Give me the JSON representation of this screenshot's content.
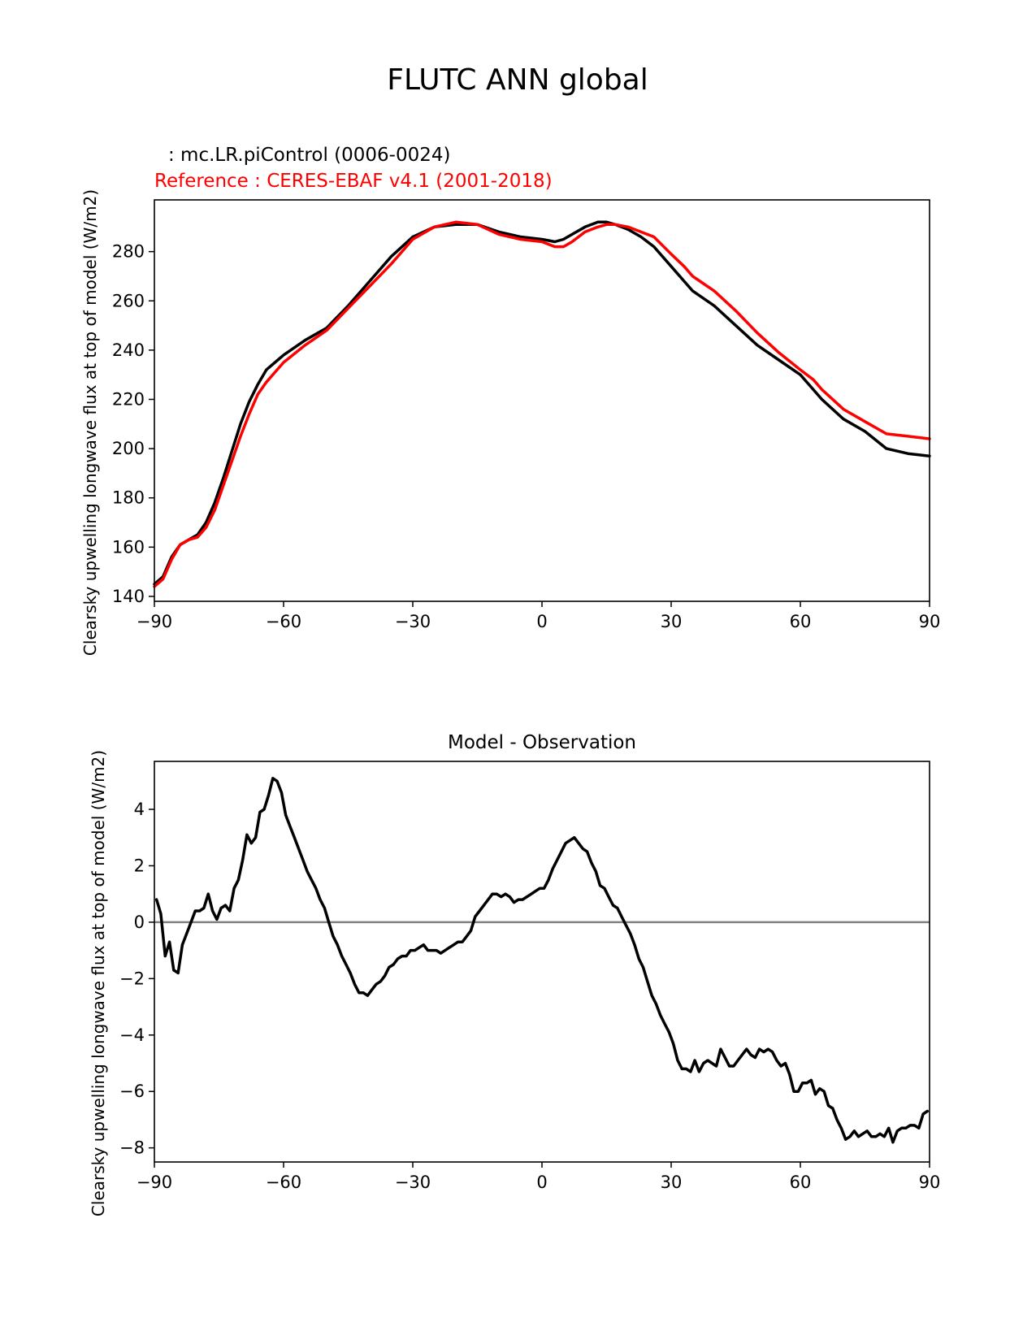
{
  "figure_title": "FLUTC ANN global",
  "colors": {
    "model": "#000000",
    "reference": "#ff0000",
    "zero_line": "#808080"
  },
  "chart_data": [
    {
      "type": "line",
      "title_lines": [
        ": mc.LR.piControl (0006-0024)",
        "Reference : CERES-EBAF v4.1 (2001-2018)"
      ],
      "xlabel": "",
      "ylabel": "Clearsky upwelling longwave flux at top of model (W/m2)",
      "xlim": [
        -90,
        90
      ],
      "ylim": [
        138,
        301
      ],
      "xticks": [
        -90,
        -60,
        -30,
        0,
        30,
        60,
        90
      ],
      "xtick_labels": [
        "−90",
        "−60",
        "−30",
        "0",
        "30",
        "60",
        "90"
      ],
      "yticks": [
        140,
        160,
        180,
        200,
        220,
        240,
        260,
        280
      ],
      "ytick_labels": [
        "140",
        "160",
        "180",
        "200",
        "220",
        "240",
        "260",
        "280"
      ],
      "grid": false,
      "series": [
        {
          "name": "mc.LR.piControl (0006-0024)",
          "color": "#000000",
          "x": [
            -90,
            -88,
            -86,
            -84,
            -82,
            -80,
            -78,
            -76,
            -74,
            -72,
            -70,
            -68,
            -66,
            -64,
            -62,
            -60,
            -55,
            -50,
            -45,
            -40,
            -35,
            -30,
            -25,
            -20,
            -15,
            -10,
            -5,
            0,
            3,
            5,
            7,
            10,
            13,
            15,
            17,
            20,
            23,
            26,
            30,
            33,
            35,
            40,
            45,
            50,
            55,
            60,
            63,
            65,
            70,
            75,
            80,
            85,
            90
          ],
          "values": [
            145,
            148,
            156,
            161,
            163,
            165,
            170,
            178,
            188,
            199,
            210,
            219,
            226,
            232,
            235,
            238,
            244,
            249,
            258,
            268,
            278,
            286,
            290,
            291,
            291,
            288,
            286,
            285,
            284,
            285,
            287,
            290,
            292,
            292,
            291,
            289,
            286,
            282,
            274,
            268,
            264,
            258,
            250,
            242,
            236,
            230,
            224,
            220,
            212,
            207,
            200,
            198,
            197
          ]
        },
        {
          "name": "CERES-EBAF v4.1 (2001-2018)",
          "color": "#ff0000",
          "x": [
            -90,
            -88,
            -86,
            -84,
            -82,
            -80,
            -78,
            -76,
            -74,
            -72,
            -70,
            -68,
            -66,
            -64,
            -62,
            -60,
            -55,
            -50,
            -45,
            -40,
            -35,
            -30,
            -25,
            -20,
            -15,
            -10,
            -5,
            0,
            3,
            5,
            7,
            10,
            13,
            15,
            17,
            20,
            23,
            26,
            30,
            33,
            35,
            40,
            45,
            50,
            55,
            60,
            63,
            65,
            70,
            75,
            80,
            85,
            90
          ],
          "values": [
            144,
            147,
            155,
            161,
            163,
            164,
            168,
            175,
            185,
            195,
            205,
            214,
            222,
            227,
            231,
            235,
            242,
            248,
            257,
            266,
            275,
            285,
            290,
            292,
            291,
            287,
            285,
            284,
            282,
            282,
            284,
            288,
            290,
            291,
            291,
            290,
            288,
            286,
            279,
            274,
            270,
            264,
            256,
            247,
            239,
            232,
            228,
            224,
            216,
            211,
            206,
            205,
            204
          ]
        }
      ]
    },
    {
      "type": "line",
      "title": "Model - Observation",
      "xlabel": "",
      "ylabel": "Clearsky upwelling longwave flux at top of model (W/m2)",
      "xlim": [
        -90,
        90
      ],
      "ylim": [
        -8.5,
        5.7
      ],
      "xticks": [
        -90,
        -60,
        -30,
        0,
        30,
        60,
        90
      ],
      "xtick_labels": [
        "−90",
        "−60",
        "−30",
        "0",
        "30",
        "60",
        "90"
      ],
      "yticks": [
        -8,
        -6,
        -4,
        -2,
        0,
        2,
        4
      ],
      "ytick_labels": [
        "−8",
        "−6",
        "−4",
        "−2",
        "0",
        "2",
        "4"
      ],
      "reference_line": {
        "y": 0,
        "color": "#808080"
      },
      "grid": false,
      "series": [
        {
          "name": "Model - Observation",
          "color": "#000000",
          "x": [
            -89.5,
            -88.5,
            -87.5,
            -86.5,
            -85.5,
            -84.5,
            -83.5,
            -82.5,
            -81.5,
            -80.5,
            -79.5,
            -78.5,
            -77.5,
            -76.5,
            -75.5,
            -74.5,
            -73.5,
            -72.5,
            -71.5,
            -70.5,
            -69.5,
            -68.5,
            -67.5,
            -66.5,
            -65.5,
            -64.5,
            -63.5,
            -62.5,
            -61.5,
            -60.5,
            -59.5,
            -58.5,
            -57.5,
            -56.5,
            -55.5,
            -54.5,
            -53.5,
            -52.5,
            -51.5,
            -50.5,
            -49.5,
            -48.5,
            -47.5,
            -46.5,
            -45.5,
            -44.5,
            -43.5,
            -42.5,
            -41.5,
            -40.5,
            -39.5,
            -38.5,
            -37.5,
            -36.5,
            -35.5,
            -34.5,
            -33.5,
            -32.5,
            -31.5,
            -30.5,
            -29.5,
            -28.5,
            -27.5,
            -26.5,
            -25.5,
            -24.5,
            -23.5,
            -22.5,
            -21.5,
            -20.5,
            -19.5,
            -18.5,
            -17.5,
            -16.5,
            -15.5,
            -14.5,
            -13.5,
            -12.5,
            -11.5,
            -10.5,
            -9.5,
            -8.5,
            -7.5,
            -6.5,
            -5.5,
            -4.5,
            -3.5,
            -2.5,
            -1.5,
            -0.5,
            0.5,
            1.5,
            2.5,
            3.5,
            4.5,
            5.5,
            6.5,
            7.5,
            8.5,
            9.5,
            10.5,
            11.5,
            12.5,
            13.5,
            14.5,
            15.5,
            16.5,
            17.5,
            18.5,
            19.5,
            20.5,
            21.5,
            22.5,
            23.5,
            24.5,
            25.5,
            26.5,
            27.5,
            28.5,
            29.5,
            30.5,
            31.5,
            32.5,
            33.5,
            34.5,
            35.5,
            36.5,
            37.5,
            38.5,
            39.5,
            40.5,
            41.5,
            42.5,
            43.5,
            44.5,
            45.5,
            46.5,
            47.5,
            48.5,
            49.5,
            50.5,
            51.5,
            52.5,
            53.5,
            54.5,
            55.5,
            56.5,
            57.5,
            58.5,
            59.5,
            60.5,
            61.5,
            62.5,
            63.5,
            64.5,
            65.5,
            66.5,
            67.5,
            68.5,
            69.5,
            70.5,
            71.5,
            72.5,
            73.5,
            74.5,
            75.5,
            76.5,
            77.5,
            78.5,
            79.5,
            80.5,
            81.5,
            82.5,
            83.5,
            84.5,
            85.5,
            86.5,
            87.5,
            88.5,
            89.5
          ],
          "values": [
            0.8,
            0.3,
            -1.2,
            -0.7,
            -1.7,
            -1.8,
            -0.8,
            -0.4,
            0.0,
            0.4,
            0.4,
            0.5,
            1.0,
            0.4,
            0.1,
            0.5,
            0.6,
            0.4,
            1.2,
            1.5,
            2.2,
            3.1,
            2.8,
            3.0,
            3.9,
            4.0,
            4.5,
            5.1,
            5.0,
            4.6,
            3.8,
            3.4,
            3.0,
            2.6,
            2.2,
            1.8,
            1.5,
            1.2,
            0.8,
            0.5,
            0.0,
            -0.5,
            -0.8,
            -1.2,
            -1.5,
            -1.8,
            -2.2,
            -2.5,
            -2.5,
            -2.6,
            -2.4,
            -2.2,
            -2.1,
            -1.9,
            -1.6,
            -1.5,
            -1.3,
            -1.2,
            -1.2,
            -1.0,
            -1.0,
            -0.9,
            -0.8,
            -1.0,
            -1.0,
            -1.0,
            -1.1,
            -1.0,
            -0.9,
            -0.8,
            -0.7,
            -0.7,
            -0.5,
            -0.3,
            0.2,
            0.4,
            0.6,
            0.8,
            1.0,
            1.0,
            0.9,
            1.0,
            0.9,
            0.7,
            0.8,
            0.8,
            0.9,
            1.0,
            1.1,
            1.2,
            1.2,
            1.5,
            1.9,
            2.2,
            2.5,
            2.8,
            2.9,
            3.0,
            2.8,
            2.6,
            2.5,
            2.1,
            1.8,
            1.3,
            1.2,
            0.9,
            0.6,
            0.5,
            0.2,
            -0.1,
            -0.4,
            -0.8,
            -1.3,
            -1.6,
            -2.1,
            -2.6,
            -2.9,
            -3.3,
            -3.6,
            -3.9,
            -4.3,
            -4.9,
            -5.2,
            -5.2,
            -5.3,
            -4.9,
            -5.3,
            -5.0,
            -4.9,
            -5.0,
            -5.1,
            -4.5,
            -4.8,
            -5.1,
            -5.1,
            -4.9,
            -4.7,
            -4.5,
            -4.7,
            -4.8,
            -4.5,
            -4.6,
            -4.5,
            -4.6,
            -4.9,
            -5.1,
            -5.0,
            -5.4,
            -6.0,
            -6.0,
            -5.7,
            -5.7,
            -5.6,
            -6.1,
            -5.9,
            -6.0,
            -6.5,
            -6.6,
            -7.0,
            -7.3,
            -7.7,
            -7.6,
            -7.4,
            -7.6,
            -7.5,
            -7.4,
            -7.6,
            -7.6,
            -7.5,
            -7.6,
            -7.3,
            -7.8,
            -7.4,
            -7.3,
            -7.3,
            -7.2,
            -7.2,
            -7.3,
            -6.8,
            -6.7
          ]
        }
      ]
    }
  ]
}
